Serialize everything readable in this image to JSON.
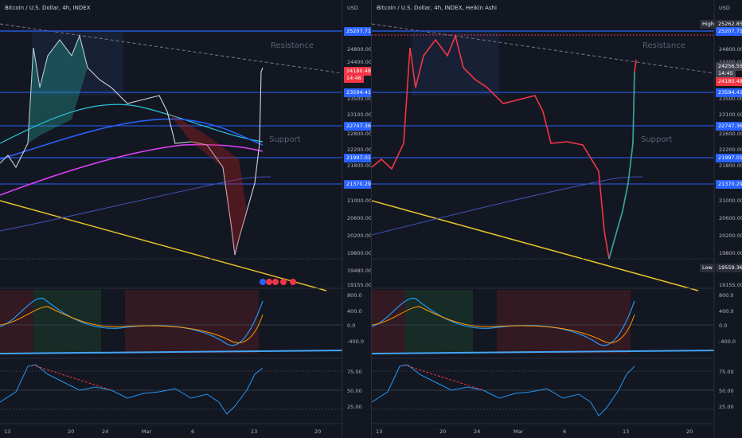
{
  "left": {
    "title": "Bitcoin / U.S. Dollar, 4h, INDEX",
    "currency": "USD",
    "price_tag": "24180.48",
    "countdown": "14:46",
    "levels": [
      "25207.71",
      "23594.41",
      "22747.36",
      "21997.01",
      "21370.29"
    ],
    "price_axis": [
      "24800.00",
      "24400.00",
      "23500.00",
      "23100.00",
      "22800.00",
      "22200.00",
      "21800.00",
      "21000.00",
      "20600.00",
      "20200.00",
      "19800.00",
      "19480.00",
      "19155.00"
    ],
    "macd_axis": [
      "800.0",
      "400.0",
      "0.0",
      "-400.0"
    ],
    "rsi_axis": [
      "75.00",
      "50.00",
      "25.00"
    ],
    "x_labels": [
      "13",
      "20",
      "24",
      "Mar",
      "6",
      "13",
      "20"
    ],
    "annotations": {
      "resistance": "Resistance",
      "support": "Support"
    }
  },
  "right": {
    "title": "Bitcoin / U.S. Dollar, 4h, INDEX, Heikin Ashi",
    "currency": "USD",
    "high_label": "High",
    "high_value": "25262.85",
    "low_label": "Low",
    "low_value": "19559.36",
    "price_tag_1": "24256.55",
    "countdown": "14:45",
    "price_tag_2": "24180.48",
    "levels": [
      "25207.71",
      "23594.41",
      "22747.36",
      "21997.01",
      "21370.29"
    ],
    "price_axis": [
      "24800.00",
      "24400.00",
      "23500.00",
      "23100.00",
      "22600.00",
      "22200.00",
      "21800.00",
      "21000.00",
      "20600.00",
      "20200.00",
      "19800.00",
      "19155.00"
    ],
    "macd_axis": [
      "800.0",
      "400.0",
      "0.0",
      "-400.0"
    ],
    "rsi_axis": [
      "75.00",
      "50.00",
      "25.00"
    ],
    "x_labels": [
      "13",
      "20",
      "24",
      "Mar",
      "6",
      "13",
      "20"
    ],
    "annotations": {
      "resistance": "Resistance",
      "support": "Support"
    }
  },
  "colors": {
    "level": "#2962ff",
    "price_tag": "#f23645",
    "trendline": "#e6c229",
    "macd_line": "#2196f3",
    "signal_line": "#ff9800",
    "rsi_line": "#2196f3"
  }
}
